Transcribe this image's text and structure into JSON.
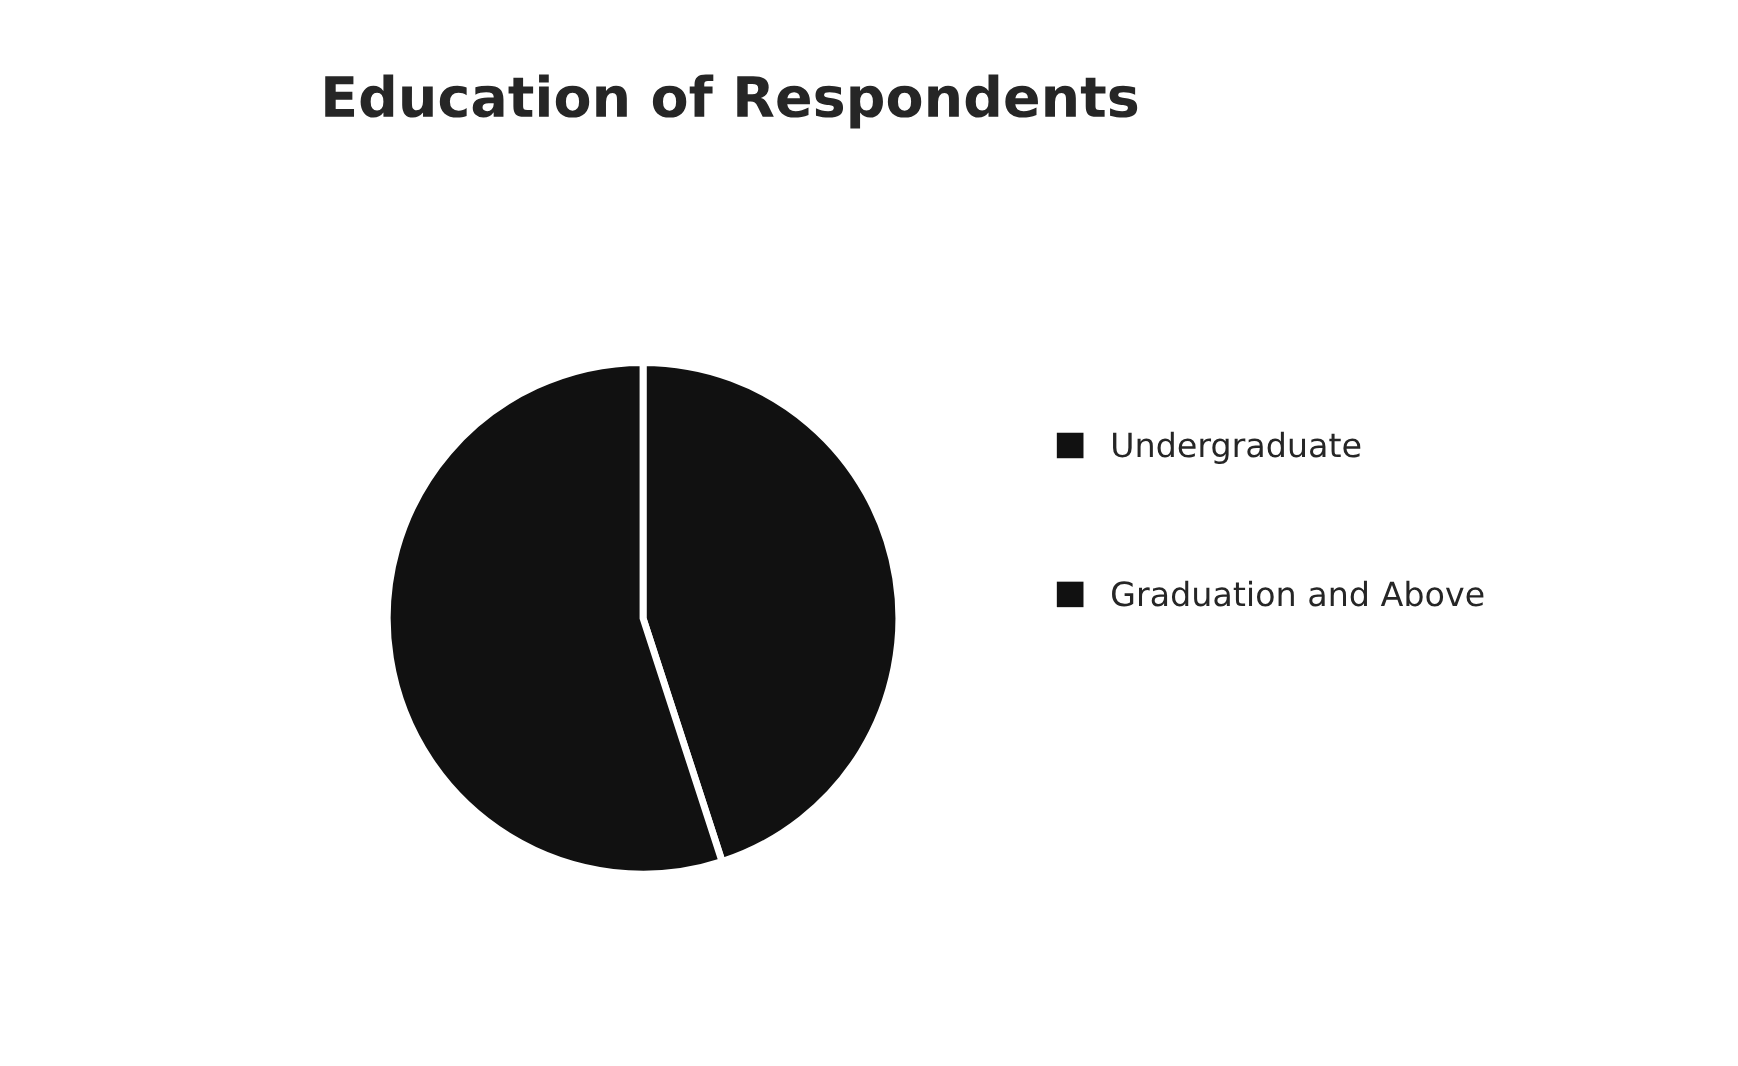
{
  "chart_data": {
    "type": "pie",
    "title": "Education of Respondents",
    "categories": [
      "Undergraduate",
      "Graduation and Above"
    ],
    "values": [
      45,
      55
    ],
    "colors": [
      "#111111",
      "#111111"
    ],
    "legend": "right"
  }
}
